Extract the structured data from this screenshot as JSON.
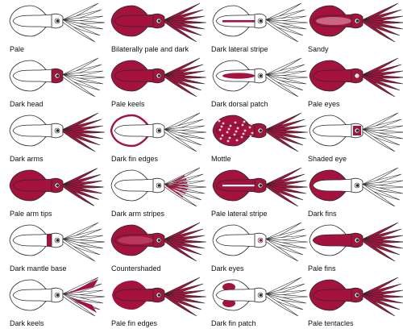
{
  "colors": {
    "dark": "#a5123e",
    "pale": "#ffffff",
    "outline": "#2a2a2a",
    "mottle_spot": "#f4d6df"
  },
  "patterns": [
    {
      "id": "pale",
      "label": "Pale",
      "features": [
        "pale"
      ]
    },
    {
      "id": "dark-head",
      "label": "Dark head",
      "features": [
        "head"
      ]
    },
    {
      "id": "dark-arms",
      "label": "Dark arms",
      "features": [
        "arms"
      ]
    },
    {
      "id": "pale-arm-tips",
      "label": "Pale arm tips",
      "features": [
        "mantle",
        "fins",
        "head",
        "arms-base"
      ]
    },
    {
      "id": "dark-mantle-base",
      "label": "Dark mantle base",
      "features": [
        "mantle-base"
      ]
    },
    {
      "id": "dark-keels",
      "label": "Dark keels",
      "features": [
        "keels"
      ]
    },
    {
      "id": "bilaterally-pale-and-dark",
      "label": "Bilaterally pale and dark",
      "features": [
        "bilateral"
      ]
    },
    {
      "id": "pale-keels",
      "label": "Pale keels",
      "features": [
        "mantle",
        "fins",
        "head",
        "arms"
      ]
    },
    {
      "id": "dark-fin-edges",
      "label": "Dark fin edges",
      "features": [
        "fin-edges"
      ]
    },
    {
      "id": "dark-arm-stripes",
      "label": "Dark arm stripes",
      "features": [
        "arm-stripes"
      ]
    },
    {
      "id": "countershaded",
      "label": "Countershaded",
      "features": [
        "countershaded"
      ]
    },
    {
      "id": "pale-fin-edges",
      "label": "Pale fin edges",
      "features": [
        "mantle",
        "fins",
        "head",
        "arms",
        "pale-fin-edge"
      ]
    },
    {
      "id": "dark-lateral-stripe",
      "label": "Dark lateral stripe",
      "features": [
        "lateral-stripe"
      ]
    },
    {
      "id": "dark-dorsal-patch",
      "label": "Dark dorsal patch",
      "features": [
        "dorsal-patch"
      ]
    },
    {
      "id": "mottle",
      "label": "Mottle",
      "features": [
        "mottle"
      ]
    },
    {
      "id": "pale-lateral-stripe",
      "label": "Pale lateral stripe",
      "features": [
        "mantle",
        "fins",
        "head",
        "arms",
        "pale-stripe"
      ]
    },
    {
      "id": "dark-eyes",
      "label": "Dark eyes",
      "features": [
        "dark-eye"
      ]
    },
    {
      "id": "dark-fin-patch",
      "label": "Dark fin patch",
      "features": [
        "fin-patch"
      ]
    },
    {
      "id": "sandy",
      "label": "Sandy",
      "features": [
        "sandy"
      ]
    },
    {
      "id": "pale-eyes",
      "label": "Pale eyes",
      "features": [
        "mantle",
        "fins",
        "head",
        "arms",
        "pale-eye"
      ]
    },
    {
      "id": "shaded-eye",
      "label": "Shaded eye",
      "features": [
        "shaded-eye"
      ]
    },
    {
      "id": "dark-fins",
      "label": "Dark fins",
      "features": [
        "fins"
      ]
    },
    {
      "id": "pale-fins",
      "label": "Pale fins",
      "features": [
        "mantle",
        "head",
        "arms"
      ]
    },
    {
      "id": "pale-tentacles",
      "label": "Pale tentacles",
      "features": [
        "mantle",
        "fins",
        "head",
        "arms"
      ]
    }
  ]
}
